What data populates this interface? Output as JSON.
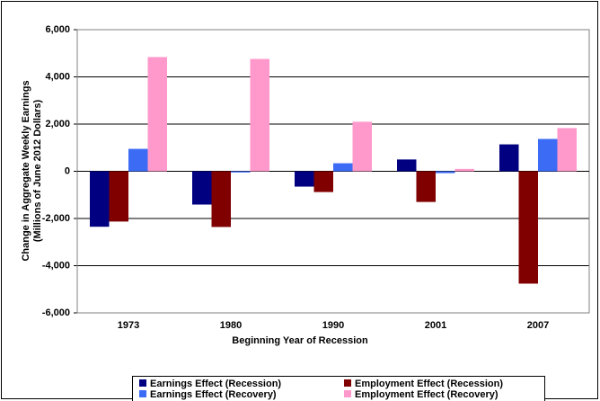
{
  "chart_data": {
    "type": "bar",
    "y_label": [
      "Change in Aggregate Weekly Earnings",
      "(Millions of June 2012 Dollars)"
    ],
    "x_label": "Beginning Year of Recession",
    "categories": [
      "1973",
      "1980",
      "1990",
      "2001",
      "2007"
    ],
    "series": [
      {
        "name": "Earnings Effect (Recession)",
        "color": "#000080",
        "values": [
          -2350,
          -1410,
          -650,
          500,
          1140
        ]
      },
      {
        "name": "Employment Effect (Recession)",
        "color": "#800000",
        "values": [
          -2130,
          -2360,
          -880,
          -1300,
          -4760
        ]
      },
      {
        "name": "Earnings Effect (Recovery)",
        "color": "#3c6cf5",
        "values": [
          950,
          -50,
          340,
          -80,
          1370
        ]
      },
      {
        "name": "Employment Effect (Recovery)",
        "color": "#ff99cc",
        "values": [
          4840,
          4760,
          2100,
          100,
          1830
        ]
      }
    ],
    "ylim": [
      -6000,
      6000
    ],
    "yticks": [
      {
        "value": -6000,
        "label": "-6,000"
      },
      {
        "value": -4000,
        "label": "-4,000"
      },
      {
        "value": -2000,
        "label": "-2,000"
      },
      0,
      {
        "value": 2000,
        "label": "2,000"
      },
      {
        "value": 4000,
        "label": "4,000"
      },
      {
        "value": 6000,
        "label": "6,000"
      }
    ],
    "grid": true,
    "legend": "bottom"
  }
}
